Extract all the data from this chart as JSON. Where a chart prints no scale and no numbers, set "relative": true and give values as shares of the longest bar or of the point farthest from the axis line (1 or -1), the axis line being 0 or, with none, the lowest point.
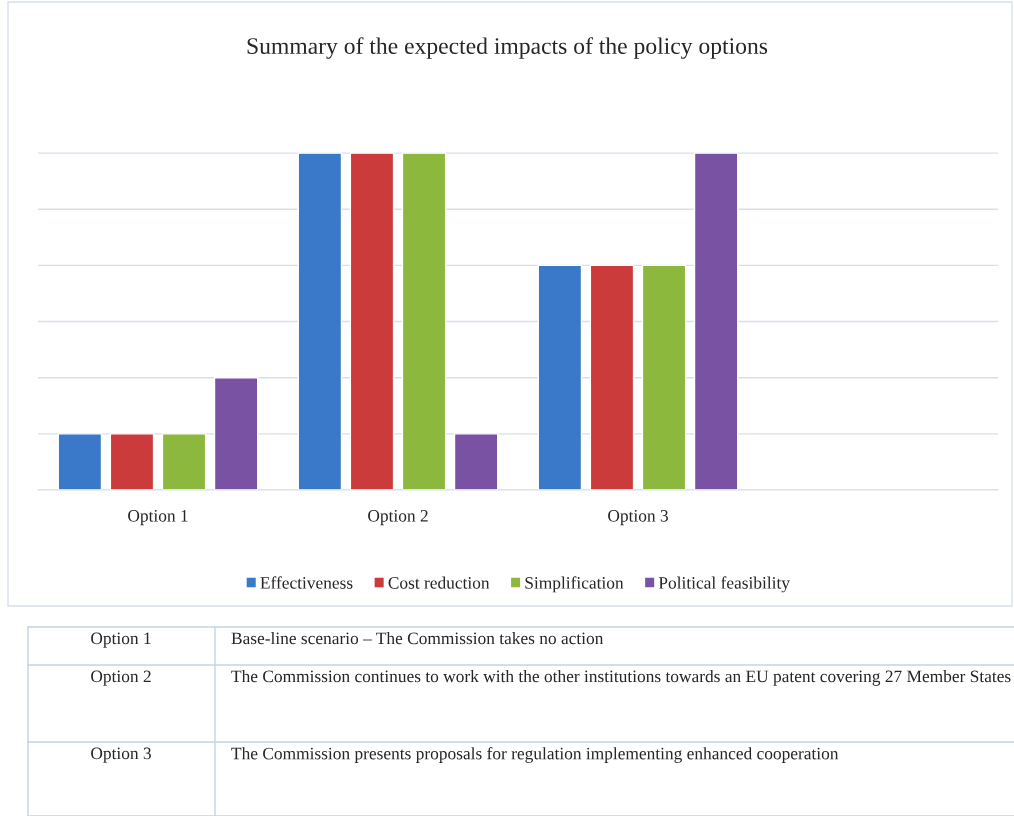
{
  "chart_data": {
    "type": "bar",
    "title": "Summary of the expected impacts of the policy options",
    "categories": [
      "Option 1",
      "Option 2",
      "Option 3",
      null
    ],
    "relative": true,
    "grid": "y",
    "legend": "bottom",
    "series": [
      {
        "name": "Effectiveness",
        "color": "#3a78c9",
        "values": [
          0.1667,
          1,
          0.6667,
          null
        ]
      },
      {
        "name": "Cost reduction",
        "color": "#cc3b3b",
        "values": [
          0.1667,
          1,
          0.6667,
          null
        ]
      },
      {
        "name": "Simplification",
        "color": "#8db83e",
        "values": [
          0.1667,
          1,
          0.6667,
          null
        ]
      },
      {
        "name": "Political feasibility",
        "color": "#7952a3",
        "values": [
          0.3333,
          0.1667,
          1,
          null
        ]
      }
    ],
    "annotations": [
      "Option 1",
      "Base-line scenario – The Commission takes no action",
      "Option 2",
      "The Commission continues to work with the other institutions towards an EU patent covering 27 Member States",
      "Option 3",
      "The Commission presents proposals for regulation implementing enhanced cooperation"
    ]
  }
}
